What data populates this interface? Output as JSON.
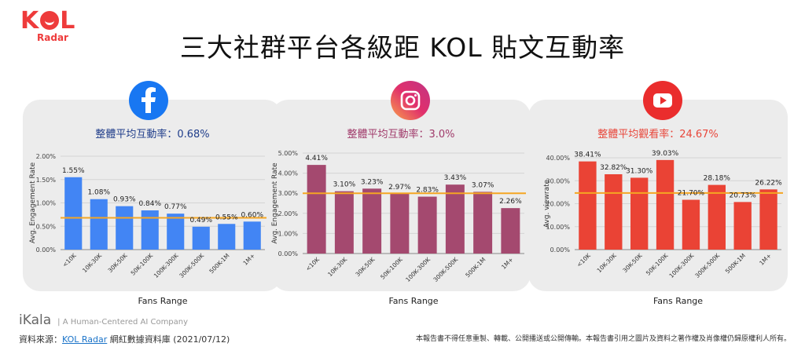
{
  "logo": {
    "brand_k": "K",
    "brand_l": "L",
    "sub": "Radar"
  },
  "title": "三大社群平台各級距 KOL 貼文互動率",
  "charts": [
    {
      "platform": "facebook",
      "icon": "facebook-icon",
      "color": "#1877f2",
      "bar_color": "#4285f4",
      "avg_text": "整體平均互動率：0.68%",
      "avg_color": "#1f3d8a",
      "chart_data": {
        "type": "bar",
        "categories": [
          "<10K",
          "10K-30K",
          "30K-50K",
          "50K-100K",
          "100K-300K",
          "300K-500K",
          "500K-1M",
          "1M+"
        ],
        "values": [
          1.55,
          1.08,
          0.93,
          0.84,
          0.77,
          0.49,
          0.55,
          0.6
        ],
        "labels": [
          "1.55%",
          "1.08%",
          "0.93%",
          "0.84%",
          "0.77%",
          "0.49%",
          "0.55%",
          "0.60%"
        ],
        "ylim": [
          0,
          2
        ],
        "yticks": [
          "0.00%",
          "0.50%",
          "1.00%",
          "1.50%",
          "2.00%"
        ],
        "ytick_values": [
          0,
          0.5,
          1,
          1.5,
          2
        ],
        "average": 0.68,
        "xlabel": "Fans Range",
        "ylabel": "Avg. Engagement Rate"
      }
    },
    {
      "platform": "instagram",
      "icon": "instagram-icon",
      "color": "#d6246b",
      "bar_color": "#a4496f",
      "avg_text": "整體平均互動率：3.0%",
      "avg_color": "#a03a6a",
      "chart_data": {
        "type": "bar",
        "categories": [
          "<10K",
          "10K-30K",
          "30K-50K",
          "50K-100K",
          "100K-300K",
          "300K-500K",
          "500K-1M",
          "1M+"
        ],
        "values": [
          4.41,
          3.1,
          3.23,
          2.97,
          2.83,
          3.43,
          3.07,
          2.26
        ],
        "labels": [
          "4.41%",
          "3.10%",
          "3.23%",
          "2.97%",
          "2.83%",
          "3.43%",
          "3.07%",
          "2.26%"
        ],
        "ylim": [
          0,
          5
        ],
        "yticks": [
          "0.00%",
          "1.00%",
          "2.00%",
          "3.00%",
          "4.00%",
          "5.00%"
        ],
        "ytick_values": [
          0,
          1,
          2,
          3,
          4,
          5
        ],
        "average": 3.0,
        "xlabel": "Fans Range",
        "ylabel": "Avg. Engagement Rate"
      }
    },
    {
      "platform": "youtube",
      "icon": "youtube-icon",
      "color": "#ea2d2d",
      "bar_color": "#ea4335",
      "avg_text": "整體平均觀看率：24.67%",
      "avg_color": "#e8463a",
      "chart_data": {
        "type": "bar",
        "categories": [
          "<10K",
          "10K-30K",
          "30K-50K",
          "50K-100K",
          "100K-300K",
          "300K-500K",
          "500K-1M",
          "1M+"
        ],
        "values": [
          38.41,
          32.82,
          31.3,
          39.03,
          21.7,
          28.18,
          20.73,
          26.22
        ],
        "labels": [
          "38.41%",
          "32.82%",
          "31.30%",
          "39.03%",
          "21.70%",
          "28.18%",
          "20.73%",
          "26.22%"
        ],
        "ylim": [
          0,
          40
        ],
        "yticks": [
          "0.00%",
          "10.00%",
          "20.00%",
          "30.00%",
          "40.00%"
        ],
        "ytick_values": [
          0,
          10,
          20,
          30,
          40
        ],
        "average": 24.67,
        "xlabel": "Fans Range",
        "ylabel": "Avg. viewrate"
      }
    }
  ],
  "average_line_color": "#f5a623",
  "footer": {
    "ikala": "iKala",
    "ikala_tag": "|   A Human-Centered AI Company",
    "source_prefix": "資料來源：",
    "source_link": "KOL Radar",
    "source_suffix": " 網紅數據資料庫 (2021/07/12)",
    "note": "本報告書不得任意重製、轉載、公開播送或公開傳輸。本報告書引用之圖片及資料之著作權及肖像權仍歸原權利人所有。"
  }
}
